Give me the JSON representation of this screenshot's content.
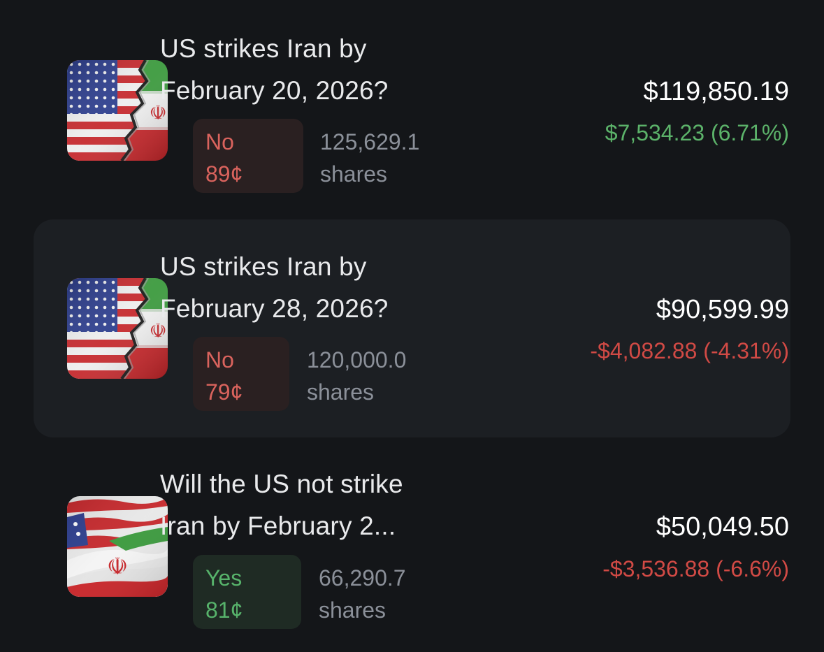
{
  "positions": [
    {
      "title_line1": "US strikes Iran by",
      "title_line2": "February 20, 2026?",
      "outcome": "No",
      "price": "89¢",
      "shares_count": "125,629.1",
      "shares_label": "shares",
      "value": "$119,850.19",
      "change": "$7,534.23 (6.71%)",
      "change_direction": "up",
      "thumbnail_icon": "us-iran-cracked-flag-icon"
    },
    {
      "title_line1": "US strikes Iran by",
      "title_line2": "February 28, 2026?",
      "outcome": "No",
      "price": "79¢",
      "shares_count": "120,000.0",
      "shares_label": "shares",
      "value": "$90,599.99",
      "change": "-$4,082.88 (-4.31%)",
      "change_direction": "down",
      "thumbnail_icon": "us-iran-cracked-flag-icon"
    },
    {
      "title_line1": "Will the US not strike",
      "title_line2": "Iran by February 2...",
      "outcome": "Yes",
      "price": "81¢",
      "shares_count": "66,290.7",
      "shares_label": "shares",
      "value": "$50,049.50",
      "change": "-$3,536.88 (-6.6%)",
      "change_direction": "down",
      "thumbnail_icon": "us-iran-waving-flags-icon"
    }
  ],
  "colors": {
    "background": "#141619",
    "highlight_row": "#1c1f23",
    "positive": "#5cb36a",
    "negative": "#d14a45",
    "no_badge_bg": "#2a2021",
    "no_badge_text": "#d9635d",
    "yes_badge_bg": "#1f2b24",
    "yes_badge_text": "#57b36b",
    "muted_text": "#8b9099"
  }
}
